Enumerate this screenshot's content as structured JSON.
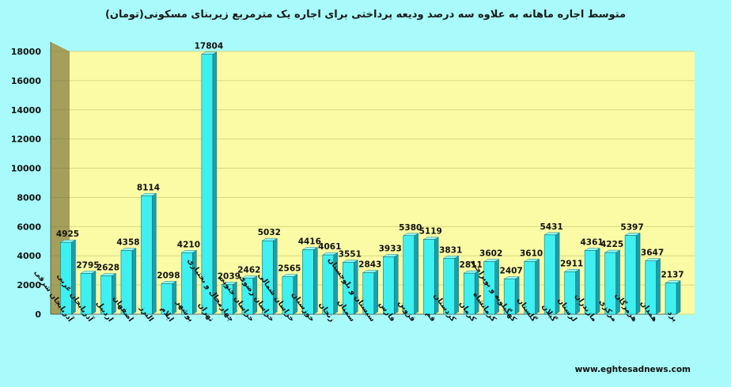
{
  "chart_data": {
    "type": "bar",
    "title": "متوسط  اجاره ماهانه به علاوه سه درصد ودیعه پرداختی برای اجاره یک مترمربع زیربنای مسکونی(تومان)",
    "categories": [
      "آذربایجان شرقی",
      "آذربایجان غربی",
      "اردبیل",
      "اصفهان",
      "البرز",
      "ایلام",
      "بوشهر",
      "تهران",
      "چهارمحال و بختیاری",
      "خراسان جنوبی",
      "خراسان رضوی",
      "خراسان شمالی",
      "خوزستان",
      "زنجان",
      "سمنان",
      "سیستان و بلوچستان",
      "فارس",
      "قزوین",
      "قم",
      "کردستان",
      "کرمان",
      "کرمانشاه",
      "کهگیلویه و بویراحمد",
      "گلستان",
      "گیلان",
      "لرستان",
      "مازندران",
      "مرکزی",
      "هرمزگان",
      "همدان",
      "یزد"
    ],
    "values": [
      4925,
      2795,
      2628,
      4358,
      8114,
      2098,
      4210,
      17804,
      2039,
      2462,
      5032,
      2565,
      4416,
      4061,
      3551,
      2843,
      3933,
      5380,
      5119,
      3831,
      2811,
      3602,
      2407,
      3610,
      5431,
      2911,
      4361,
      4225,
      5397,
      3647,
      2137
    ],
    "ylim": [
      0,
      18000
    ],
    "yticks": [
      0,
      2000,
      4000,
      6000,
      8000,
      10000,
      12000,
      14000,
      16000,
      18000
    ],
    "ytick_labels": [
      "0",
      "2000",
      "4000",
      "6000",
      "8000",
      "10000",
      "12000",
      "14000",
      "16000",
      "18000"
    ],
    "grid": true,
    "legend": "none",
    "colors": {
      "bar_front": "#3ff0f0",
      "bar_side": "#1a9fa8",
      "bar_top": "#8ff8f8",
      "wall": "#fbfba6",
      "side_wall": "#a69f5a",
      "grid": "#d8d880",
      "page": "#a9fbfb"
    }
  },
  "source": "www.eghtesadnews.com"
}
